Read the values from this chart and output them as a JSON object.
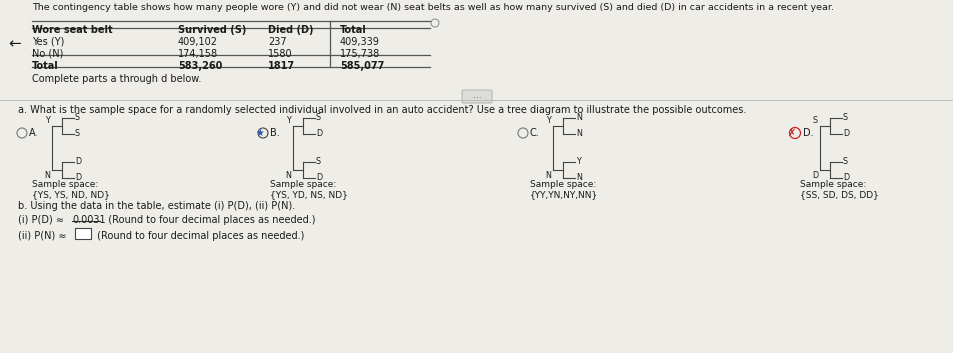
{
  "title": "The contingency table shows how many people wore (Y) and did not wear (N) seat belts as well as how many survived (S) and died (D) in car accidents in a recent year.",
  "table_headers": [
    "Wore seat belt",
    "Survived (S)",
    "Died (D)",
    "Total"
  ],
  "table_rows": [
    [
      "Yes (Y)",
      "409,102",
      "237",
      "409,339"
    ],
    [
      "No (N)",
      "174,158",
      "1580",
      "175,738"
    ],
    [
      "Total",
      "583,260",
      "1817",
      "585,077"
    ]
  ],
  "complete_parts": "Complete parts a through d below.",
  "part_a_text": "a. What is the sample space for a randomly selected individual involved in an auto accident? Use a tree diagram to illustrate the possible outcomes.",
  "part_b_text": "b. Using the data in the table, estimate (i) P(D), (ii) P(N).",
  "pd_line": "(i) P(D) ≈ 0.0031  (Round to four decimal places as needed.)",
  "pd_value": "0.0031",
  "pn_prefix": "(ii) P(N) ≈ ",
  "pn_suffix": " (Round to four decimal places as needed.)",
  "sample_spaces_labels": [
    "{YS, YS, ND, ND}",
    "{YS, YD, NS, ND}",
    "{YY,YN,NY,NN}",
    "{SS, SD, DS, DD}"
  ],
  "bg_color": "#eeede8",
  "text_color": "#1a1a1a",
  "table_bg": "#f0eeea",
  "line_color": "#555555"
}
